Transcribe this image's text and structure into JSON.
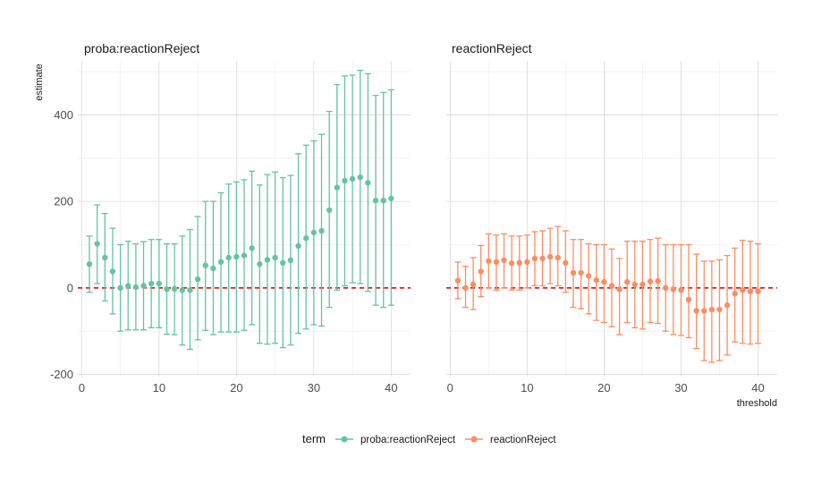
{
  "chart_data": {
    "type": "errorbar",
    "xlabel": "threshold",
    "ylabel": "estimate",
    "xlim": [
      -0.5,
      42.5
    ],
    "ylim": [
      -205,
      525
    ],
    "x_ticks": [
      0,
      10,
      20,
      30,
      40
    ],
    "y_ticks": [
      -200,
      0,
      200,
      400
    ],
    "x_tick_labels": [
      "0",
      "10",
      "20",
      "30",
      "40"
    ],
    "y_tick_labels": [
      "-200",
      "0",
      "200",
      "400"
    ],
    "reference_line": {
      "y": 0,
      "color": "#cc0000",
      "style": "dashed"
    },
    "grid": true,
    "legend": {
      "title": "term",
      "placement": "bottom"
    },
    "x": [
      1,
      2,
      3,
      4,
      5,
      6,
      7,
      8,
      9,
      10,
      11,
      12,
      13,
      14,
      15,
      16,
      17,
      18,
      19,
      20,
      21,
      22,
      23,
      24,
      25,
      26,
      27,
      28,
      29,
      30,
      31,
      32,
      33,
      34,
      35,
      36,
      37,
      38,
      39,
      40
    ],
    "panels": [
      {
        "title": "proba:reactionReject",
        "series_name": "proba:reactionReject",
        "color": "#66c2a5",
        "estimate": [
          55,
          102,
          70,
          38,
          0,
          5,
          2,
          5,
          10,
          10,
          -3,
          -2,
          -5,
          -5,
          20,
          52,
          45,
          60,
          70,
          72,
          75,
          92,
          55,
          65,
          70,
          58,
          64,
          97,
          115,
          128,
          132,
          180,
          232,
          248,
          252,
          256,
          243,
          202,
          202,
          207
        ],
        "lower": [
          -10,
          10,
          -30,
          -60,
          -100,
          -97,
          -97,
          -97,
          -92,
          -92,
          -107,
          -108,
          -132,
          -142,
          -120,
          -98,
          -108,
          -102,
          -102,
          -102,
          -98,
          -85,
          -128,
          -130,
          -128,
          -138,
          -132,
          -105,
          -95,
          -85,
          -88,
          -45,
          -5,
          5,
          12,
          10,
          -8,
          -40,
          -45,
          -40
        ],
        "upper": [
          120,
          192,
          172,
          138,
          100,
          108,
          102,
          107,
          112,
          112,
          102,
          102,
          120,
          135,
          165,
          200,
          200,
          220,
          240,
          245,
          250,
          270,
          238,
          262,
          268,
          255,
          260,
          310,
          330,
          340,
          355,
          408,
          470,
          490,
          492,
          503,
          495,
          445,
          452,
          458
        ]
      },
      {
        "title": "reactionReject",
        "series_name": "reactionReject",
        "color": "#fc8d62",
        "estimate": [
          17,
          0,
          8,
          38,
          62,
          60,
          64,
          57,
          58,
          60,
          68,
          68,
          72,
          70,
          58,
          35,
          35,
          28,
          18,
          14,
          5,
          -3,
          14,
          8,
          8,
          15,
          16,
          0,
          -3,
          -5,
          -27,
          -53,
          -53,
          -50,
          -50,
          -40,
          -13,
          -5,
          -8,
          -8
        ],
        "lower": [
          -25,
          -45,
          -50,
          -20,
          0,
          -5,
          0,
          -5,
          -5,
          0,
          5,
          5,
          10,
          5,
          -10,
          -45,
          -48,
          -60,
          -75,
          -80,
          -90,
          -108,
          -80,
          -92,
          -95,
          -80,
          -82,
          -100,
          -108,
          -110,
          -115,
          -140,
          -168,
          -172,
          -168,
          -155,
          -125,
          -128,
          -130,
          -128
        ],
        "upper": [
          60,
          50,
          70,
          98,
          125,
          122,
          125,
          120,
          120,
          122,
          130,
          132,
          138,
          142,
          132,
          112,
          112,
          102,
          100,
          100,
          90,
          68,
          108,
          108,
          108,
          112,
          115,
          100,
          100,
          100,
          100,
          78,
          62,
          62,
          65,
          75,
          92,
          110,
          108,
          102
        ]
      }
    ]
  }
}
